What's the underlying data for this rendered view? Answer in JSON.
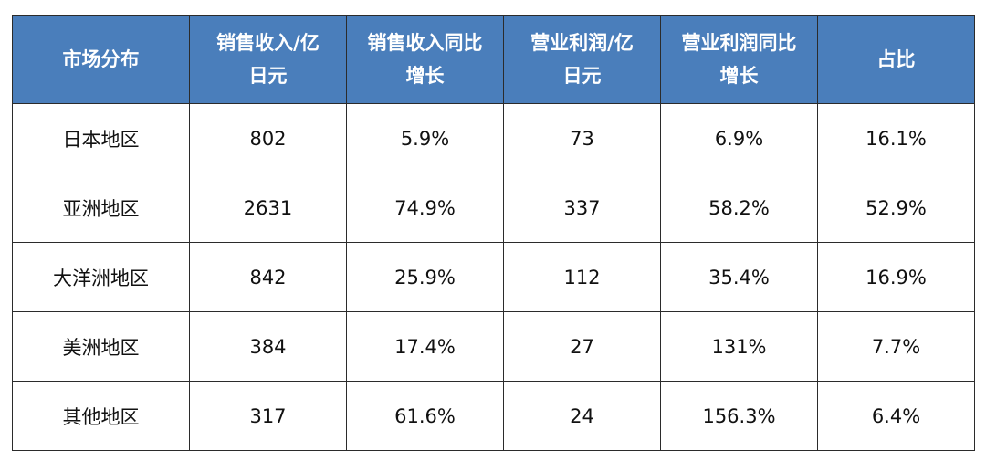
{
  "chart_data": {
    "type": "table",
    "header_color": "#4a7ebb",
    "columns": [
      "市场分布",
      "销售收入/亿日元",
      "销售收入同比增长",
      "营业利润/亿日元",
      "营业利润同比增长",
      "占比"
    ],
    "header_lines": [
      [
        "市场分布"
      ],
      [
        "销售收入/亿",
        "日元"
      ],
      [
        "销售收入同比",
        "增长"
      ],
      [
        "营业利润/亿",
        "日元"
      ],
      [
        "营业利润同比",
        "增长"
      ],
      [
        "占比"
      ]
    ],
    "rows": [
      [
        "日本地区",
        "802",
        "5.9%",
        "73",
        "6.9%",
        "16.1%"
      ],
      [
        "亚洲地区",
        "2631",
        "74.9%",
        "337",
        "58.2%",
        "52.9%"
      ],
      [
        "大洋洲地区",
        "842",
        "25.9%",
        "112",
        "35.4%",
        "16.9%"
      ],
      [
        "美洲地区",
        "384",
        "17.4%",
        "27",
        "131%",
        "7.7%"
      ],
      [
        "其他地区",
        "317",
        "61.6%",
        "24",
        "156.3%",
        "6.4%"
      ]
    ]
  }
}
